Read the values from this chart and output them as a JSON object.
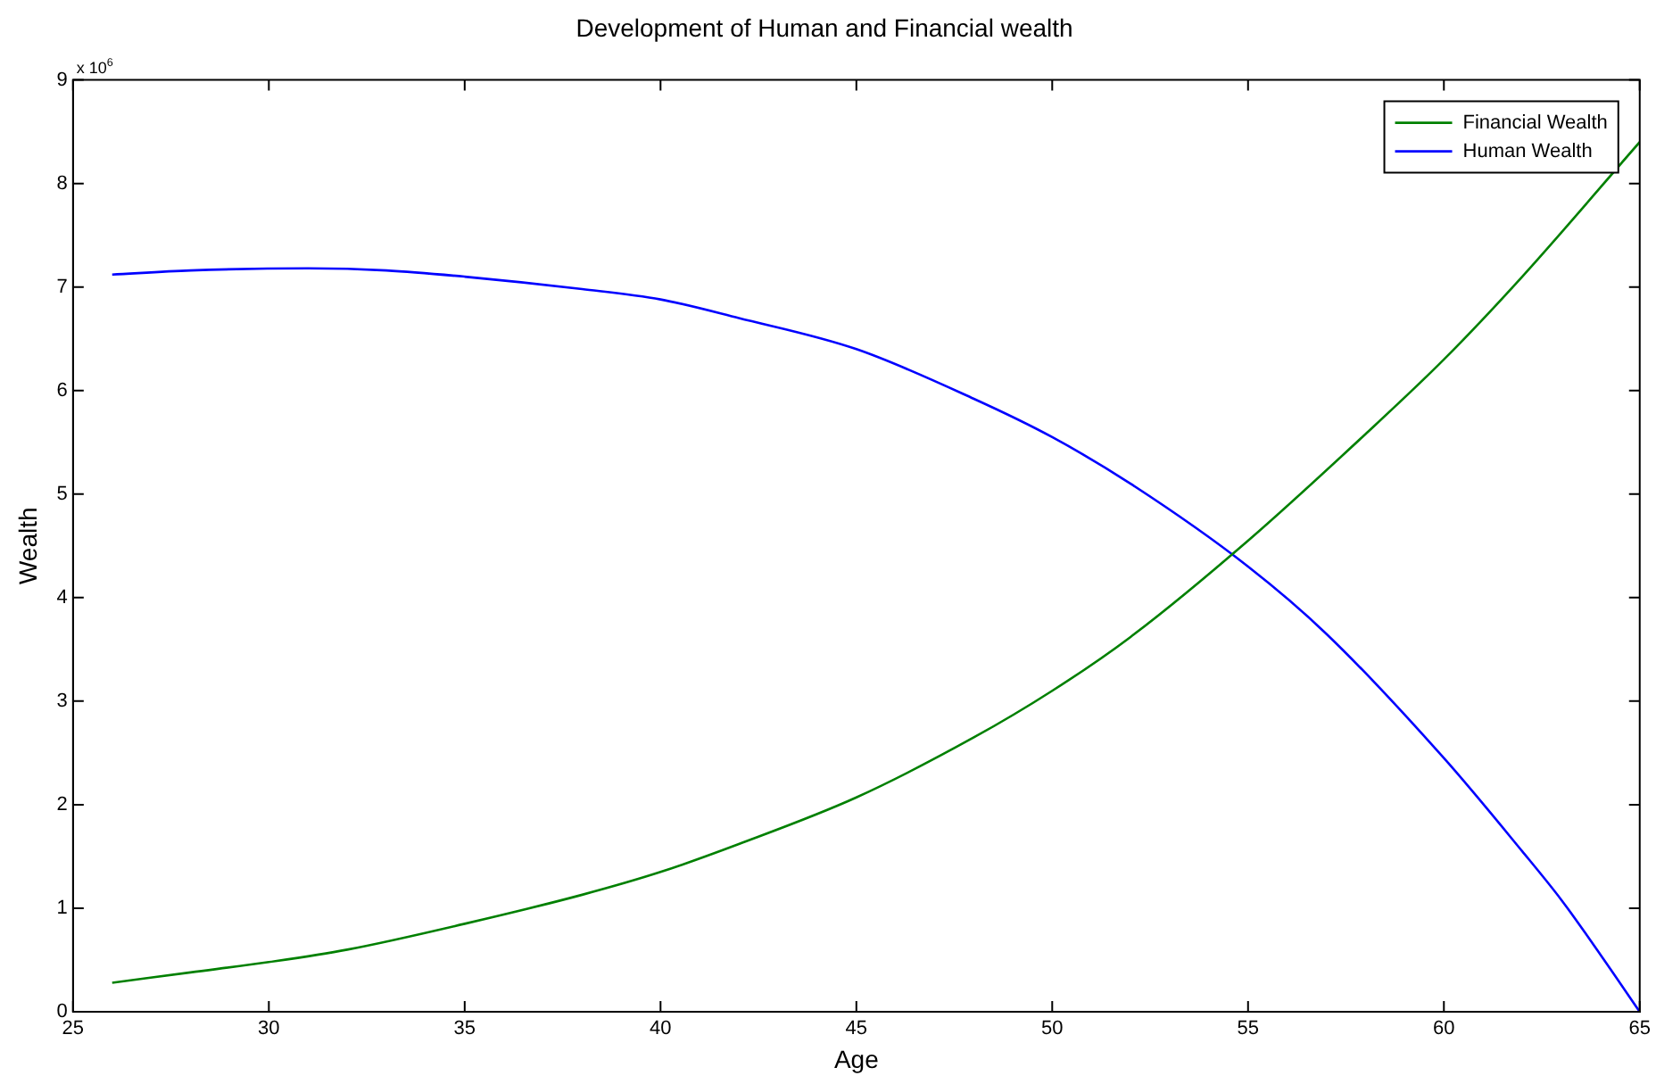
{
  "chart_data": {
    "type": "line",
    "title": "Development of Human and Financial wealth",
    "xlabel": "Age",
    "ylabel": "Wealth",
    "annotations": [
      "x 10$^{6}$"
    ],
    "xlim": [
      25,
      65
    ],
    "xticks": [
      25,
      30,
      35,
      40,
      45,
      50,
      55,
      60,
      65
    ],
    "ylim": [
      0,
      9
    ],
    "yticks": [
      0,
      1,
      2,
      3,
      4,
      5,
      6,
      7,
      8,
      9
    ],
    "grid": false,
    "legend": "top right",
    "marker": "none",
    "line_style": "solid",
    "series": [
      {
        "name": "Financial Wealth",
        "color": "#008000",
        "x": [
          26,
          28,
          30,
          32,
          35,
          38,
          40,
          42,
          45,
          48,
          50,
          52,
          55,
          58,
          60,
          62,
          65
        ],
        "values": [
          0.28,
          0.38,
          0.48,
          0.6,
          0.85,
          1.13,
          1.35,
          1.62,
          2.07,
          2.65,
          3.1,
          3.62,
          4.55,
          5.58,
          6.3,
          7.1,
          8.4
        ]
      },
      {
        "name": "Human Wealth",
        "color": "#0000ff",
        "x": [
          26,
          28,
          31,
          33,
          35,
          38,
          40,
          42,
          45,
          48,
          50,
          52,
          55,
          57,
          60,
          62,
          63,
          64,
          65
        ],
        "values": [
          7.12,
          7.16,
          7.18,
          7.16,
          7.1,
          6.98,
          6.88,
          6.7,
          6.4,
          5.92,
          5.55,
          5.1,
          4.3,
          3.65,
          2.45,
          1.55,
          1.08,
          0.55,
          0
        ]
      }
    ]
  }
}
